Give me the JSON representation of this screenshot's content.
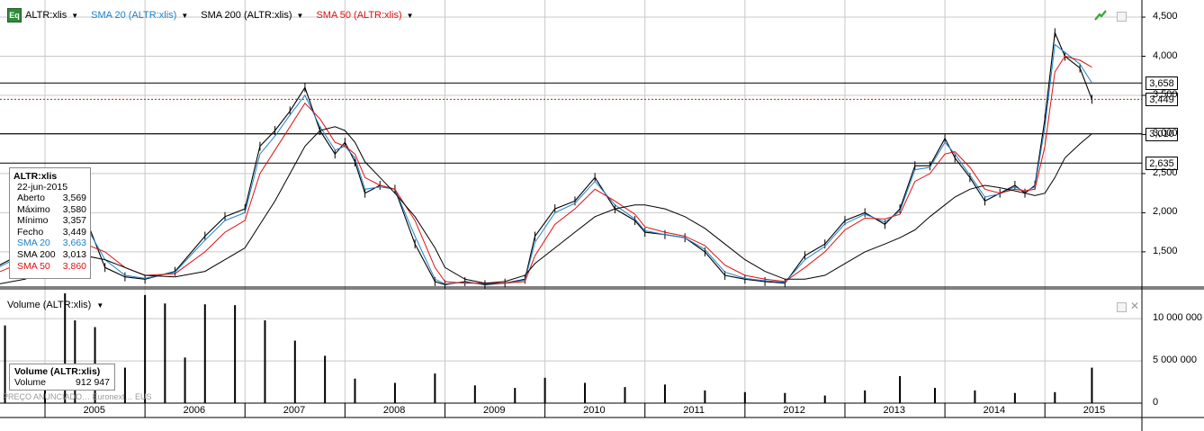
{
  "toolbar": {
    "icon_label": "Eq",
    "items": [
      {
        "label": "ALTR:xlis",
        "color": "#000000"
      },
      {
        "label": "SMA 20 (ALTR:xlis)",
        "color": "#1e82c8"
      },
      {
        "label": "SMA 200 (ALTR:xlis)",
        "color": "#000000"
      },
      {
        "label": "SMA 50 (ALTR:xlis)",
        "color": "#e01010"
      }
    ]
  },
  "info": {
    "title": "ALTR:xlis",
    "date": "22-jun-2015",
    "rows": [
      {
        "label": "Aberto",
        "value": "3,569",
        "color": "#000000"
      },
      {
        "label": "Máximo",
        "value": "3,580",
        "color": "#000000"
      },
      {
        "label": "Mínimo",
        "value": "3,357",
        "color": "#000000"
      },
      {
        "label": "Fecho",
        "value": "3,449",
        "color": "#000000"
      },
      {
        "label": "SMA 20",
        "value": "3,663",
        "color": "#1e82c8"
      },
      {
        "label": "SMA 200",
        "value": "3,013",
        "color": "#000000"
      },
      {
        "label": "SMA 50",
        "value": "3,860",
        "color": "#e01010"
      }
    ]
  },
  "volume_panel": {
    "legend": "Volume (ALTR:xlis)",
    "box_title": "Volume (ALTR:xlis)",
    "box_label": "Volume",
    "box_value": "912 947"
  },
  "watermark": "PREÇO ANUNCIADO… Euronext… EUS",
  "price_tags": [
    {
      "value": 3.658,
      "label": "3,658"
    },
    {
      "value": 3.449,
      "label": "3,449"
    },
    {
      "value": 3.01,
      "label": "3,010"
    },
    {
      "value": 2.635,
      "label": "2,635"
    }
  ],
  "chart_data": [
    {
      "type": "line",
      "series_style": "ohlc",
      "title": "",
      "ylim": [
        1.05,
        4.65
      ],
      "y_ticks": [
        "1,500",
        "2,000",
        "2,500",
        "3,000",
        "3,500",
        "4,000",
        "4,500"
      ],
      "y_tick_values": [
        1.5,
        2.0,
        2.5,
        3.0,
        3.5,
        4.0,
        4.5
      ],
      "x_ticks": [
        "2005",
        "2006",
        "2007",
        "2008",
        "2009",
        "2010",
        "2011",
        "2012",
        "2013",
        "2014",
        "2015"
      ],
      "x": [
        2004.2,
        2004.5,
        2004.8,
        2005.0,
        2005.2,
        2005.4,
        2005.6,
        2005.8,
        2006.0,
        2006.3,
        2006.6,
        2006.8,
        2007.0,
        2007.15,
        2007.3,
        2007.45,
        2007.6,
        2007.75,
        2007.9,
        2008.0,
        2008.1,
        2008.2,
        2008.35,
        2008.5,
        2008.7,
        2008.9,
        2009.0,
        2009.2,
        2009.4,
        2009.6,
        2009.8,
        2009.9,
        2010.1,
        2010.3,
        2010.5,
        2010.7,
        2010.9,
        2011.0,
        2011.2,
        2011.4,
        2011.6,
        2011.8,
        2012.0,
        2012.2,
        2012.4,
        2012.6,
        2012.8,
        2013.0,
        2013.2,
        2013.4,
        2013.55,
        2013.7,
        2013.85,
        2014.0,
        2014.1,
        2014.25,
        2014.4,
        2014.55,
        2014.7,
        2014.8,
        2014.9,
        2015.0,
        2015.1,
        2015.2,
        2015.35,
        2015.47
      ],
      "series": [
        {
          "name": "ALTR:xlis",
          "color": "#000000",
          "values": [
            1.15,
            1.3,
            1.5,
            1.55,
            1.55,
            1.95,
            1.3,
            1.18,
            1.15,
            1.25,
            1.7,
            1.95,
            2.05,
            2.85,
            3.05,
            3.3,
            3.6,
            3.05,
            2.75,
            2.9,
            2.65,
            2.25,
            2.35,
            2.3,
            1.6,
            1.12,
            1.08,
            1.12,
            1.08,
            1.1,
            1.15,
            1.7,
            2.05,
            2.15,
            2.45,
            2.05,
            1.9,
            1.75,
            1.72,
            1.68,
            1.5,
            1.2,
            1.15,
            1.12,
            1.1,
            1.45,
            1.6,
            1.9,
            2.0,
            1.85,
            2.05,
            2.6,
            2.6,
            2.95,
            2.7,
            2.45,
            2.15,
            2.25,
            2.35,
            2.25,
            2.35,
            3.2,
            4.3,
            4.0,
            3.85,
            3.45
          ]
        },
        {
          "name": "SMA 20 (ALTR:xlis)",
          "color": "#1e82c8",
          "values": [
            1.14,
            1.28,
            1.47,
            1.53,
            1.56,
            1.85,
            1.4,
            1.2,
            1.16,
            1.24,
            1.65,
            1.9,
            2.0,
            2.75,
            2.98,
            3.25,
            3.5,
            3.1,
            2.8,
            2.85,
            2.7,
            2.3,
            2.33,
            2.3,
            1.7,
            1.15,
            1.09,
            1.11,
            1.09,
            1.1,
            1.14,
            1.62,
            2.0,
            2.12,
            2.4,
            2.1,
            1.92,
            1.77,
            1.72,
            1.68,
            1.53,
            1.24,
            1.16,
            1.13,
            1.11,
            1.4,
            1.57,
            1.86,
            1.98,
            1.88,
            2.02,
            2.55,
            2.58,
            2.9,
            2.75,
            2.48,
            2.2,
            2.24,
            2.33,
            2.27,
            2.33,
            3.1,
            4.15,
            4.05,
            3.9,
            3.66
          ]
        },
        {
          "name": "SMA 50 (ALTR:xlis)",
          "color": "#e01010",
          "values": [
            1.12,
            1.22,
            1.38,
            1.48,
            1.52,
            1.6,
            1.5,
            1.3,
            1.2,
            1.22,
            1.5,
            1.75,
            1.9,
            2.5,
            2.8,
            3.1,
            3.4,
            3.2,
            2.9,
            2.85,
            2.75,
            2.45,
            2.35,
            2.3,
            1.9,
            1.3,
            1.12,
            1.1,
            1.1,
            1.1,
            1.12,
            1.45,
            1.85,
            2.05,
            2.3,
            2.15,
            1.98,
            1.82,
            1.75,
            1.7,
            1.58,
            1.33,
            1.2,
            1.15,
            1.12,
            1.3,
            1.5,
            1.78,
            1.93,
            1.92,
            1.98,
            2.4,
            2.5,
            2.75,
            2.78,
            2.58,
            2.3,
            2.25,
            2.3,
            2.28,
            2.3,
            2.85,
            3.8,
            4.0,
            3.95,
            3.86
          ]
        },
        {
          "name": "SMA 200 (ALTR:xlis)",
          "color": "#000000",
          "values": [
            1.05,
            1.08,
            1.15,
            1.25,
            1.35,
            1.45,
            1.4,
            1.3,
            1.2,
            1.18,
            1.25,
            1.4,
            1.55,
            1.85,
            2.15,
            2.5,
            2.85,
            3.05,
            3.1,
            3.05,
            2.9,
            2.65,
            2.45,
            2.25,
            1.95,
            1.55,
            1.3,
            1.15,
            1.1,
            1.12,
            1.2,
            1.35,
            1.55,
            1.75,
            1.95,
            2.05,
            2.1,
            2.1,
            2.05,
            1.95,
            1.8,
            1.6,
            1.4,
            1.25,
            1.15,
            1.15,
            1.2,
            1.35,
            1.5,
            1.6,
            1.68,
            1.78,
            1.95,
            2.1,
            2.2,
            2.3,
            2.35,
            2.32,
            2.28,
            2.25,
            2.22,
            2.25,
            2.45,
            2.7,
            2.88,
            3.01
          ]
        }
      ]
    },
    {
      "type": "bar",
      "title": "",
      "ylim": [
        0,
        13000000
      ],
      "y_ticks": [
        "0",
        "5 000 000",
        "10 000 000"
      ],
      "y_tick_values": [
        0,
        5000000,
        10000000
      ],
      "x": [
        2004.4,
        2004.6,
        2005.0,
        2005.2,
        2005.3,
        2005.5,
        2005.8,
        2006.0,
        2006.2,
        2006.4,
        2006.6,
        2006.9,
        2007.2,
        2007.5,
        2007.8,
        2008.1,
        2008.5,
        2008.9,
        2009.3,
        2009.7,
        2010.0,
        2010.4,
        2010.8,
        2011.2,
        2011.6,
        2012.0,
        2012.4,
        2012.8,
        2013.2,
        2013.55,
        2013.9,
        2014.3,
        2014.7,
        2015.1,
        2015.47
      ],
      "series": [
        {
          "name": "Volume",
          "color": "#000000",
          "values": [
            1200000,
            9200000,
            3500000,
            13000000,
            9800000,
            9000000,
            4200000,
            12800000,
            11800000,
            5400000,
            11700000,
            11600000,
            9800000,
            7400000,
            5600000,
            2900000,
            2400000,
            3500000,
            2100000,
            1800000,
            3000000,
            2400000,
            1900000,
            2200000,
            1500000,
            1300000,
            1200000,
            900000,
            1500000,
            3200000,
            1800000,
            1500000,
            1200000,
            1300000,
            4200000
          ]
        }
      ]
    }
  ]
}
